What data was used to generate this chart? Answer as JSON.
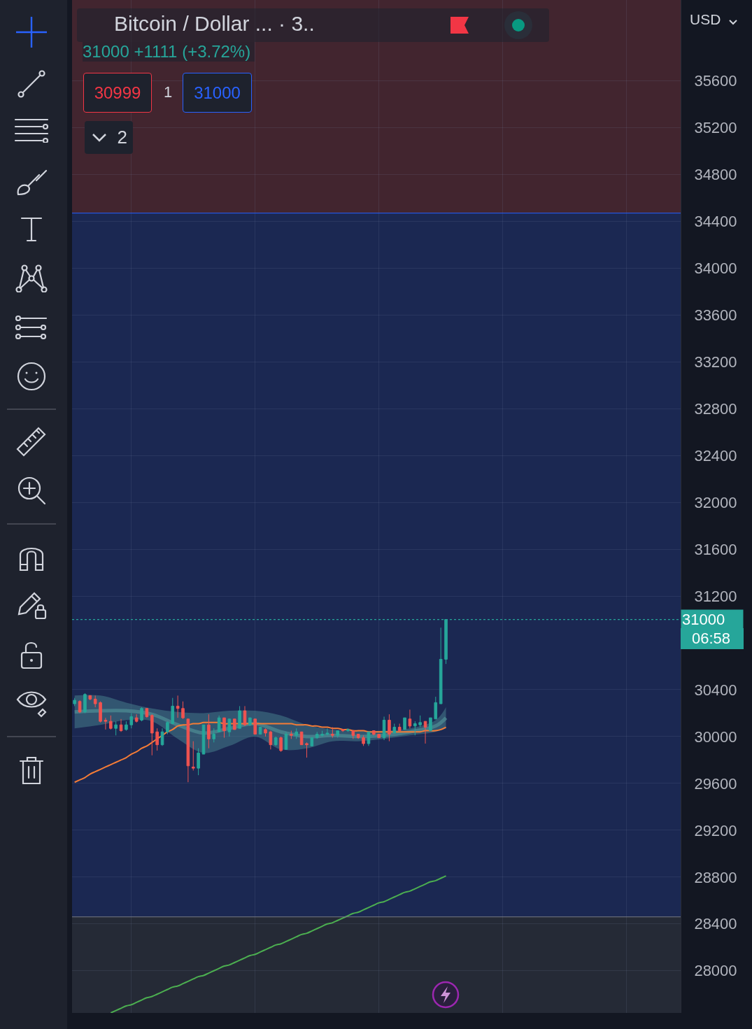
{
  "chart_data": {
    "type": "candlestick",
    "title": "Bitcoin / Dollar ... · 3..",
    "subtitle": "31000 +1111 (+3.72%)",
    "annotations": [
      "30999",
      "1",
      "31000",
      "2",
      "USD",
      "06:58"
    ],
    "categories": [
      null,
      null,
      null,
      null,
      null,
      null,
      null,
      null,
      null,
      null,
      null,
      null,
      null,
      null,
      null,
      null,
      null,
      null,
      null,
      null,
      null,
      null,
      null,
      null,
      null,
      null,
      null,
      null,
      null,
      null,
      null,
      null,
      null,
      null,
      null,
      null,
      null,
      null,
      null,
      null,
      null,
      null,
      null,
      null,
      null,
      null,
      null,
      null,
      null,
      null,
      null,
      null,
      null,
      null,
      null,
      null,
      null,
      null,
      null,
      null,
      null,
      null,
      null,
      null,
      null,
      null,
      null,
      null,
      null,
      null,
      null,
      null,
      null,
      null,
      null,
      null,
      null,
      null,
      null,
      null,
      null,
      null,
      null,
      null,
      null,
      null,
      null,
      null,
      null,
      null,
      null,
      null,
      null,
      null,
      null,
      null,
      null,
      null,
      null,
      null,
      null,
      null,
      null,
      null,
      null,
      null,
      null,
      null,
      null,
      null,
      null,
      null,
      null,
      null,
      null,
      null,
      null,
      null
    ],
    "ohlc": [
      [
        30280,
        30330,
        30260,
        30310
      ],
      [
        30300,
        30310,
        30200,
        30210
      ],
      [
        30210,
        30370,
        30200,
        30360
      ],
      [
        30350,
        30350,
        30310,
        30320
      ],
      [
        30320,
        30350,
        30250,
        30280
      ],
      [
        30290,
        30300,
        30120,
        30130
      ],
      [
        30140,
        30160,
        30060,
        30130
      ],
      [
        30130,
        30180,
        30060,
        30070
      ],
      [
        30070,
        30130,
        30010,
        30100
      ],
      [
        30100,
        30150,
        30040,
        30050
      ],
      [
        30060,
        30130,
        30050,
        30100
      ],
      [
        30100,
        30200,
        30070,
        30170
      ],
      [
        30160,
        30190,
        30120,
        30130
      ],
      [
        30140,
        30250,
        30130,
        30240
      ],
      [
        30240,
        30240,
        30160,
        30170
      ],
      [
        30180,
        30190,
        29840,
        30030
      ],
      [
        30040,
        30070,
        29880,
        29930
      ],
      [
        29930,
        30070,
        29920,
        30040
      ],
      [
        30040,
        30130,
        30020,
        30120
      ],
      [
        30110,
        30330,
        30110,
        30260
      ],
      [
        30260,
        30350,
        30160,
        30240
      ],
      [
        30240,
        30300,
        30150,
        30160
      ],
      [
        30150,
        30150,
        29610,
        29750
      ],
      [
        29740,
        29960,
        29710,
        29730
      ],
      [
        29730,
        29900,
        29670,
        29860
      ],
      [
        29850,
        30100,
        29850,
        30100
      ],
      [
        30100,
        30190,
        29900,
        29980
      ],
      [
        29980,
        30070,
        29950,
        30020
      ],
      [
        30040,
        30180,
        30040,
        30160
      ],
      [
        30160,
        30160,
        29990,
        30050
      ],
      [
        30040,
        30150,
        30000,
        30150
      ],
      [
        30150,
        30150,
        30060,
        30060
      ],
      [
        30070,
        30260,
        30070,
        30220
      ],
      [
        30220,
        30260,
        30090,
        30100
      ],
      [
        30100,
        30160,
        30090,
        30160
      ],
      [
        30150,
        30150,
        30020,
        30020
      ],
      [
        30020,
        30080,
        30020,
        30080
      ],
      [
        30060,
        30070,
        30000,
        30030
      ],
      [
        30040,
        30050,
        29890,
        29930
      ],
      [
        29930,
        30000,
        29920,
        29990
      ],
      [
        29990,
        30000,
        29870,
        29880
      ],
      [
        29890,
        30040,
        29890,
        30020
      ],
      [
        30020,
        30050,
        29980,
        30010
      ],
      [
        30010,
        30070,
        29980,
        30040
      ],
      [
        30040,
        30040,
        29930,
        29930
      ],
      [
        29940,
        29950,
        29820,
        29930
      ],
      [
        29920,
        29990,
        29920,
        29990
      ],
      [
        29990,
        30040,
        29980,
        30020
      ],
      [
        30010,
        30050,
        30000,
        30020
      ],
      [
        30020,
        30070,
        30010,
        30030
      ],
      [
        30020,
        30080,
        29990,
        30010
      ],
      [
        30010,
        30050,
        29990,
        30050
      ],
      [
        30060,
        30060,
        30040,
        30050
      ],
      [
        30050,
        30070,
        30040,
        30060
      ],
      [
        30050,
        30050,
        29980,
        30010
      ],
      [
        30020,
        30020,
        29980,
        29990
      ],
      [
        29990,
        30010,
        29920,
        29940
      ],
      [
        29940,
        30040,
        29920,
        30040
      ],
      [
        30050,
        30050,
        30010,
        30020
      ],
      [
        30020,
        30020,
        29990,
        29990
      ],
      [
        29990,
        30170,
        29970,
        30140
      ],
      [
        30140,
        30190,
        29960,
        30020
      ],
      [
        30030,
        30110,
        30030,
        30080
      ],
      [
        30080,
        30110,
        30050,
        30050
      ],
      [
        30060,
        30160,
        30060,
        30160
      ],
      [
        30150,
        30230,
        30070,
        30090
      ],
      [
        30090,
        30130,
        30010,
        30110
      ],
      [
        30100,
        30180,
        30080,
        30120
      ],
      [
        30130,
        30130,
        29940,
        30080
      ],
      [
        30050,
        30160,
        30050,
        30160
      ],
      [
        30150,
        30340,
        30150,
        30290
      ],
      [
        30280,
        30930,
        30280,
        30660
      ],
      [
        30660,
        31000,
        30620,
        31000
      ],
      null,
      null,
      null,
      null,
      null,
      null,
      null,
      null,
      null,
      null,
      null,
      null,
      null,
      null,
      null,
      null,
      null,
      null,
      null,
      null,
      null,
      null,
      null,
      null,
      null,
      null,
      null,
      null,
      null,
      null,
      null,
      null,
      null,
      null,
      null,
      null,
      null,
      null,
      null,
      null,
      null,
      null,
      null,
      null,
      null
    ],
    "colors": [
      "#26a69a",
      "#ef5350",
      "#26a69a",
      "#ef5350",
      "#ef5350",
      "#ef5350",
      "#ef5350",
      "#ef5350",
      "#26a69a",
      "#ef5350",
      "#26a69a",
      "#26a69a",
      "#ef5350",
      "#26a69a",
      "#ef5350",
      "#ef5350",
      "#ef5350",
      "#26a69a",
      "#26a69a",
      "#26a69a",
      "#ef5350",
      "#ef5350",
      "#ef5350",
      "#ef5350",
      "#26a69a",
      "#26a69a",
      "#ef5350",
      "#26a69a",
      "#26a69a",
      "#ef5350",
      "#26a69a",
      "#ef5350",
      "#26a69a",
      "#ef5350",
      "#26a69a",
      "#ef5350",
      "#26a69a",
      "#ef5350",
      "#ef5350",
      "#26a69a",
      "#ef5350",
      "#26a69a",
      "#ef5350",
      "#26a69a",
      "#ef5350",
      "#ef5350",
      "#26a69a",
      "#26a69a",
      "#26a69a",
      "#26a69a",
      "#ef5350",
      "#26a69a",
      "#ef5350",
      "#26a69a",
      "#ef5350",
      "#ef5350",
      "#ef5350",
      "#26a69a",
      "#ef5350",
      "#ef5350",
      "#26a69a",
      "#ef5350",
      "#26a69a",
      "#ef5350",
      "#26a69a",
      "#ef5350",
      "#26a69a",
      "#26a69a",
      "#ef5350",
      "#26a69a",
      "#26a69a",
      "#26a69a",
      "#26a69a",
      null,
      null,
      null,
      null,
      null,
      null,
      null,
      null,
      null,
      null,
      null,
      null,
      null,
      null,
      null,
      null,
      null,
      null,
      null,
      null,
      null,
      null,
      null,
      null,
      null,
      null,
      null,
      null,
      null,
      null,
      null,
      null,
      null,
      null,
      null,
      null,
      null,
      null,
      null,
      null,
      null,
      null,
      null,
      null,
      null
    ],
    "series": [
      {
        "type": "line",
        "color": "#4f8f96",
        "values": [
          30210,
          null,
          null,
          null,
          null,
          30220,
          null,
          null,
          null,
          null,
          30220,
          null,
          null,
          null,
          null,
          30190,
          null,
          null,
          null,
          null,
          30100,
          null,
          null,
          null,
          null,
          30030,
          null,
          null,
          null,
          null,
          30070,
          null,
          null,
          null,
          null,
          30110,
          null,
          null,
          null,
          null,
          30040,
          null,
          null,
          null,
          null,
          30000,
          null,
          null,
          null,
          null,
          30010,
          null,
          null,
          null,
          null,
          30000,
          null,
          null,
          null,
          null,
          30010,
          null,
          null,
          null,
          null,
          30040,
          null,
          null,
          null,
          null,
          30090,
          null,
          30160,
          null,
          null,
          null,
          null,
          null,
          null,
          null,
          null,
          null,
          null,
          null,
          null,
          null,
          null,
          null,
          null,
          null,
          null,
          null,
          null,
          null,
          null,
          null,
          null,
          null,
          null,
          null,
          null,
          null,
          null,
          null,
          null,
          null,
          null,
          null,
          null,
          null,
          null,
          null,
          null,
          null,
          null,
          null,
          null,
          null
        ],
        "lower": [
          30070,
          null,
          null,
          null,
          null,
          30100,
          null,
          null,
          null,
          null,
          30140,
          null,
          null,
          null,
          null,
          30130,
          null,
          null,
          null,
          null,
          29980,
          null,
          null,
          null,
          null,
          29860,
          null,
          null,
          null,
          null,
          29920,
          null,
          null,
          null,
          null,
          30000,
          null,
          null,
          null,
          null,
          29890,
          null,
          null,
          null,
          null,
          29900,
          null,
          null,
          null,
          null,
          29960,
          null,
          null,
          null,
          null,
          29960,
          null,
          null,
          null,
          null,
          29980,
          null,
          null,
          null,
          null,
          30010,
          null,
          null,
          null,
          null,
          30040,
          null,
          30070,
          null,
          null,
          null,
          null,
          null,
          null,
          null,
          null,
          null,
          null,
          null,
          null,
          null,
          null,
          null,
          null,
          null,
          null,
          null,
          null,
          null,
          null,
          null,
          null,
          null,
          null,
          null,
          null,
          null,
          null,
          null,
          null,
          null,
          null,
          null,
          null,
          null,
          null,
          null,
          null,
          null,
          null,
          null,
          null,
          null
        ],
        "upper": [
          30350,
          null,
          null,
          null,
          null,
          30350,
          null,
          null,
          null,
          null,
          30290,
          null,
          null,
          null,
          null,
          30240,
          null,
          null,
          null,
          null,
          30210,
          null,
          null,
          null,
          null,
          30200,
          null,
          null,
          null,
          null,
          30220,
          null,
          null,
          null,
          null,
          30220,
          null,
          null,
          null,
          null,
          30180,
          null,
          null,
          null,
          null,
          30100,
          null,
          null,
          null,
          null,
          30060,
          null,
          null,
          null,
          null,
          30050,
          null,
          null,
          null,
          null,
          30050,
          null,
          null,
          null,
          null,
          30070,
          null,
          null,
          null,
          null,
          30140,
          null,
          30250,
          null,
          null,
          null,
          null,
          null,
          null,
          null,
          null,
          null,
          null,
          null,
          null,
          null,
          null,
          null,
          null,
          null,
          null,
          null,
          null,
          null,
          null,
          null,
          null,
          null,
          null,
          null,
          null,
          null,
          null,
          null,
          null,
          null,
          null,
          null,
          null,
          null,
          null,
          null,
          null,
          null,
          null,
          null,
          null,
          null
        ]
      },
      {
        "type": "line",
        "color": "#f57c36",
        "values": [
          29610,
          29630,
          29650,
          29680,
          29700,
          29720,
          29740,
          29760,
          29780,
          29800,
          29820,
          29850,
          29870,
          29900,
          29920,
          29950,
          29980,
          30010,
          30040,
          30060,
          30090,
          30100,
          30100,
          30110,
          30110,
          30120,
          30120,
          30120,
          30120,
          30110,
          30110,
          30110,
          30110,
          30110,
          30110,
          30110,
          30110,
          30110,
          30110,
          30110,
          30110,
          30110,
          30110,
          30100,
          30100,
          30100,
          30090,
          30090,
          30080,
          30080,
          30070,
          30070,
          30060,
          30060,
          30050,
          30050,
          30050,
          30040,
          30040,
          30040,
          30040,
          30040,
          30040,
          30040,
          30040,
          30040,
          30040,
          30040,
          30050,
          30050,
          30050,
          30060,
          30080,
          null,
          null,
          null,
          null,
          null,
          null,
          null,
          null,
          null,
          null,
          null,
          null,
          null,
          null,
          null,
          null,
          null,
          null,
          null,
          null,
          null,
          null,
          null,
          null,
          null,
          null,
          null,
          null,
          null,
          null,
          null,
          null,
          null,
          null,
          null,
          null,
          null,
          null,
          null,
          null,
          null,
          null,
          null,
          null,
          null
        ]
      },
      {
        "type": "line",
        "color": "#4caf50",
        "values": [
          null,
          null,
          null,
          null,
          null,
          null,
          null,
          27640,
          27660,
          27680,
          27700,
          27710,
          27730,
          27750,
          27770,
          27780,
          27800,
          27820,
          27840,
          27860,
          27870,
          27890,
          27910,
          27930,
          27950,
          27960,
          27980,
          28000,
          28020,
          28040,
          28050,
          28070,
          28090,
          28110,
          28130,
          28140,
          28160,
          28180,
          28200,
          28220,
          28230,
          28250,
          28270,
          28290,
          28310,
          28320,
          28340,
          28360,
          28380,
          28400,
          28410,
          28430,
          28450,
          28470,
          28490,
          28500,
          28520,
          28540,
          28560,
          28580,
          28590,
          28610,
          28630,
          28650,
          28670,
          28680,
          28700,
          28720,
          28740,
          28760,
          28770,
          28790,
          28810,
          null,
          null,
          null,
          null,
          null,
          null,
          null,
          null,
          null,
          null,
          null,
          null,
          null,
          null,
          null,
          null,
          null,
          null,
          null,
          null,
          null,
          null,
          null,
          null,
          null,
          null,
          null,
          null,
          null,
          null,
          null,
          null,
          null,
          null,
          null,
          null,
          null,
          null,
          null,
          null,
          null,
          null,
          null,
          null,
          null
        ]
      }
    ],
    "ylim": [
      27640,
      36290
    ],
    "yticks": [
      28000,
      28400,
      28800,
      29200,
      29600,
      30000,
      30400,
      31200,
      31600,
      32000,
      32400,
      32800,
      33200,
      33600,
      34000,
      34400,
      34800,
      35200,
      35600
    ],
    "bands": [
      {
        "axis": "y",
        "from": 34470,
        "to": 36290,
        "color": "#42252f"
      },
      {
        "axis": "y",
        "from": 28460,
        "to": 34470,
        "color": "#1b2852"
      },
      {
        "axis": "y",
        "from": 27640,
        "to": 28460,
        "color": "#252a36"
      }
    ],
    "ref_lines": [
      {
        "axis": "y",
        "value": 34470,
        "color": "#2962ff",
        "line_style": "solid"
      },
      {
        "axis": "y",
        "value": 28460,
        "color": "#787b86",
        "line_style": "solid"
      },
      {
        "axis": "y",
        "value": 31000,
        "label": "31000",
        "color": "#26a69a",
        "line_style": "dotted"
      }
    ],
    "grid": true,
    "tick_labels": "y"
  }
}
